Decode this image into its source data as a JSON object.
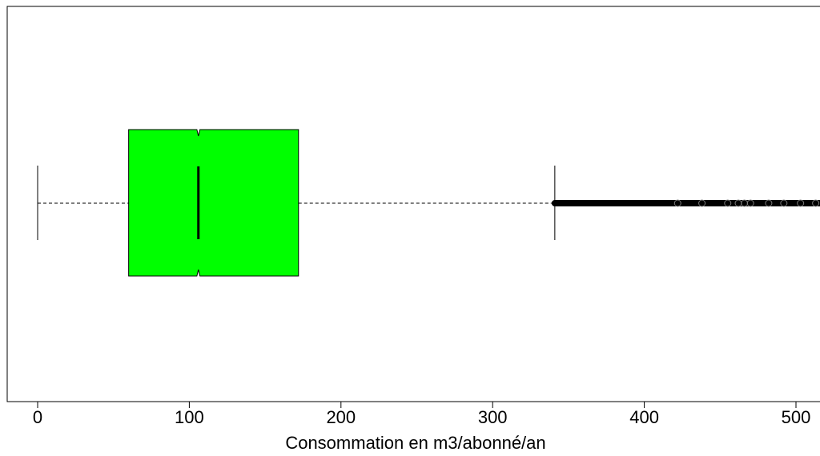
{
  "chart_data": {
    "type": "boxplot",
    "orientation": "horizontal",
    "notched": true,
    "xlabel": "Consommation en m3/abonné/an",
    "xlim": [
      -20,
      516
    ],
    "x_ticks": [
      0,
      100,
      200,
      300,
      400,
      500
    ],
    "x_tick_labels": [
      "0",
      "100",
      "200",
      "300",
      "400",
      "500"
    ],
    "box": {
      "whisker_low": 0,
      "q1": 60,
      "median": 106,
      "q3": 172,
      "whisker_high": 341,
      "notch_low": 105,
      "notch_high": 107,
      "fill_color": "#00ff00",
      "line_color": "#000000"
    },
    "outliers": {
      "dense_from": 341,
      "dense_to": 516,
      "scattered": [
        422,
        438,
        455,
        462,
        466,
        470,
        482,
        492,
        503,
        513
      ]
    }
  }
}
